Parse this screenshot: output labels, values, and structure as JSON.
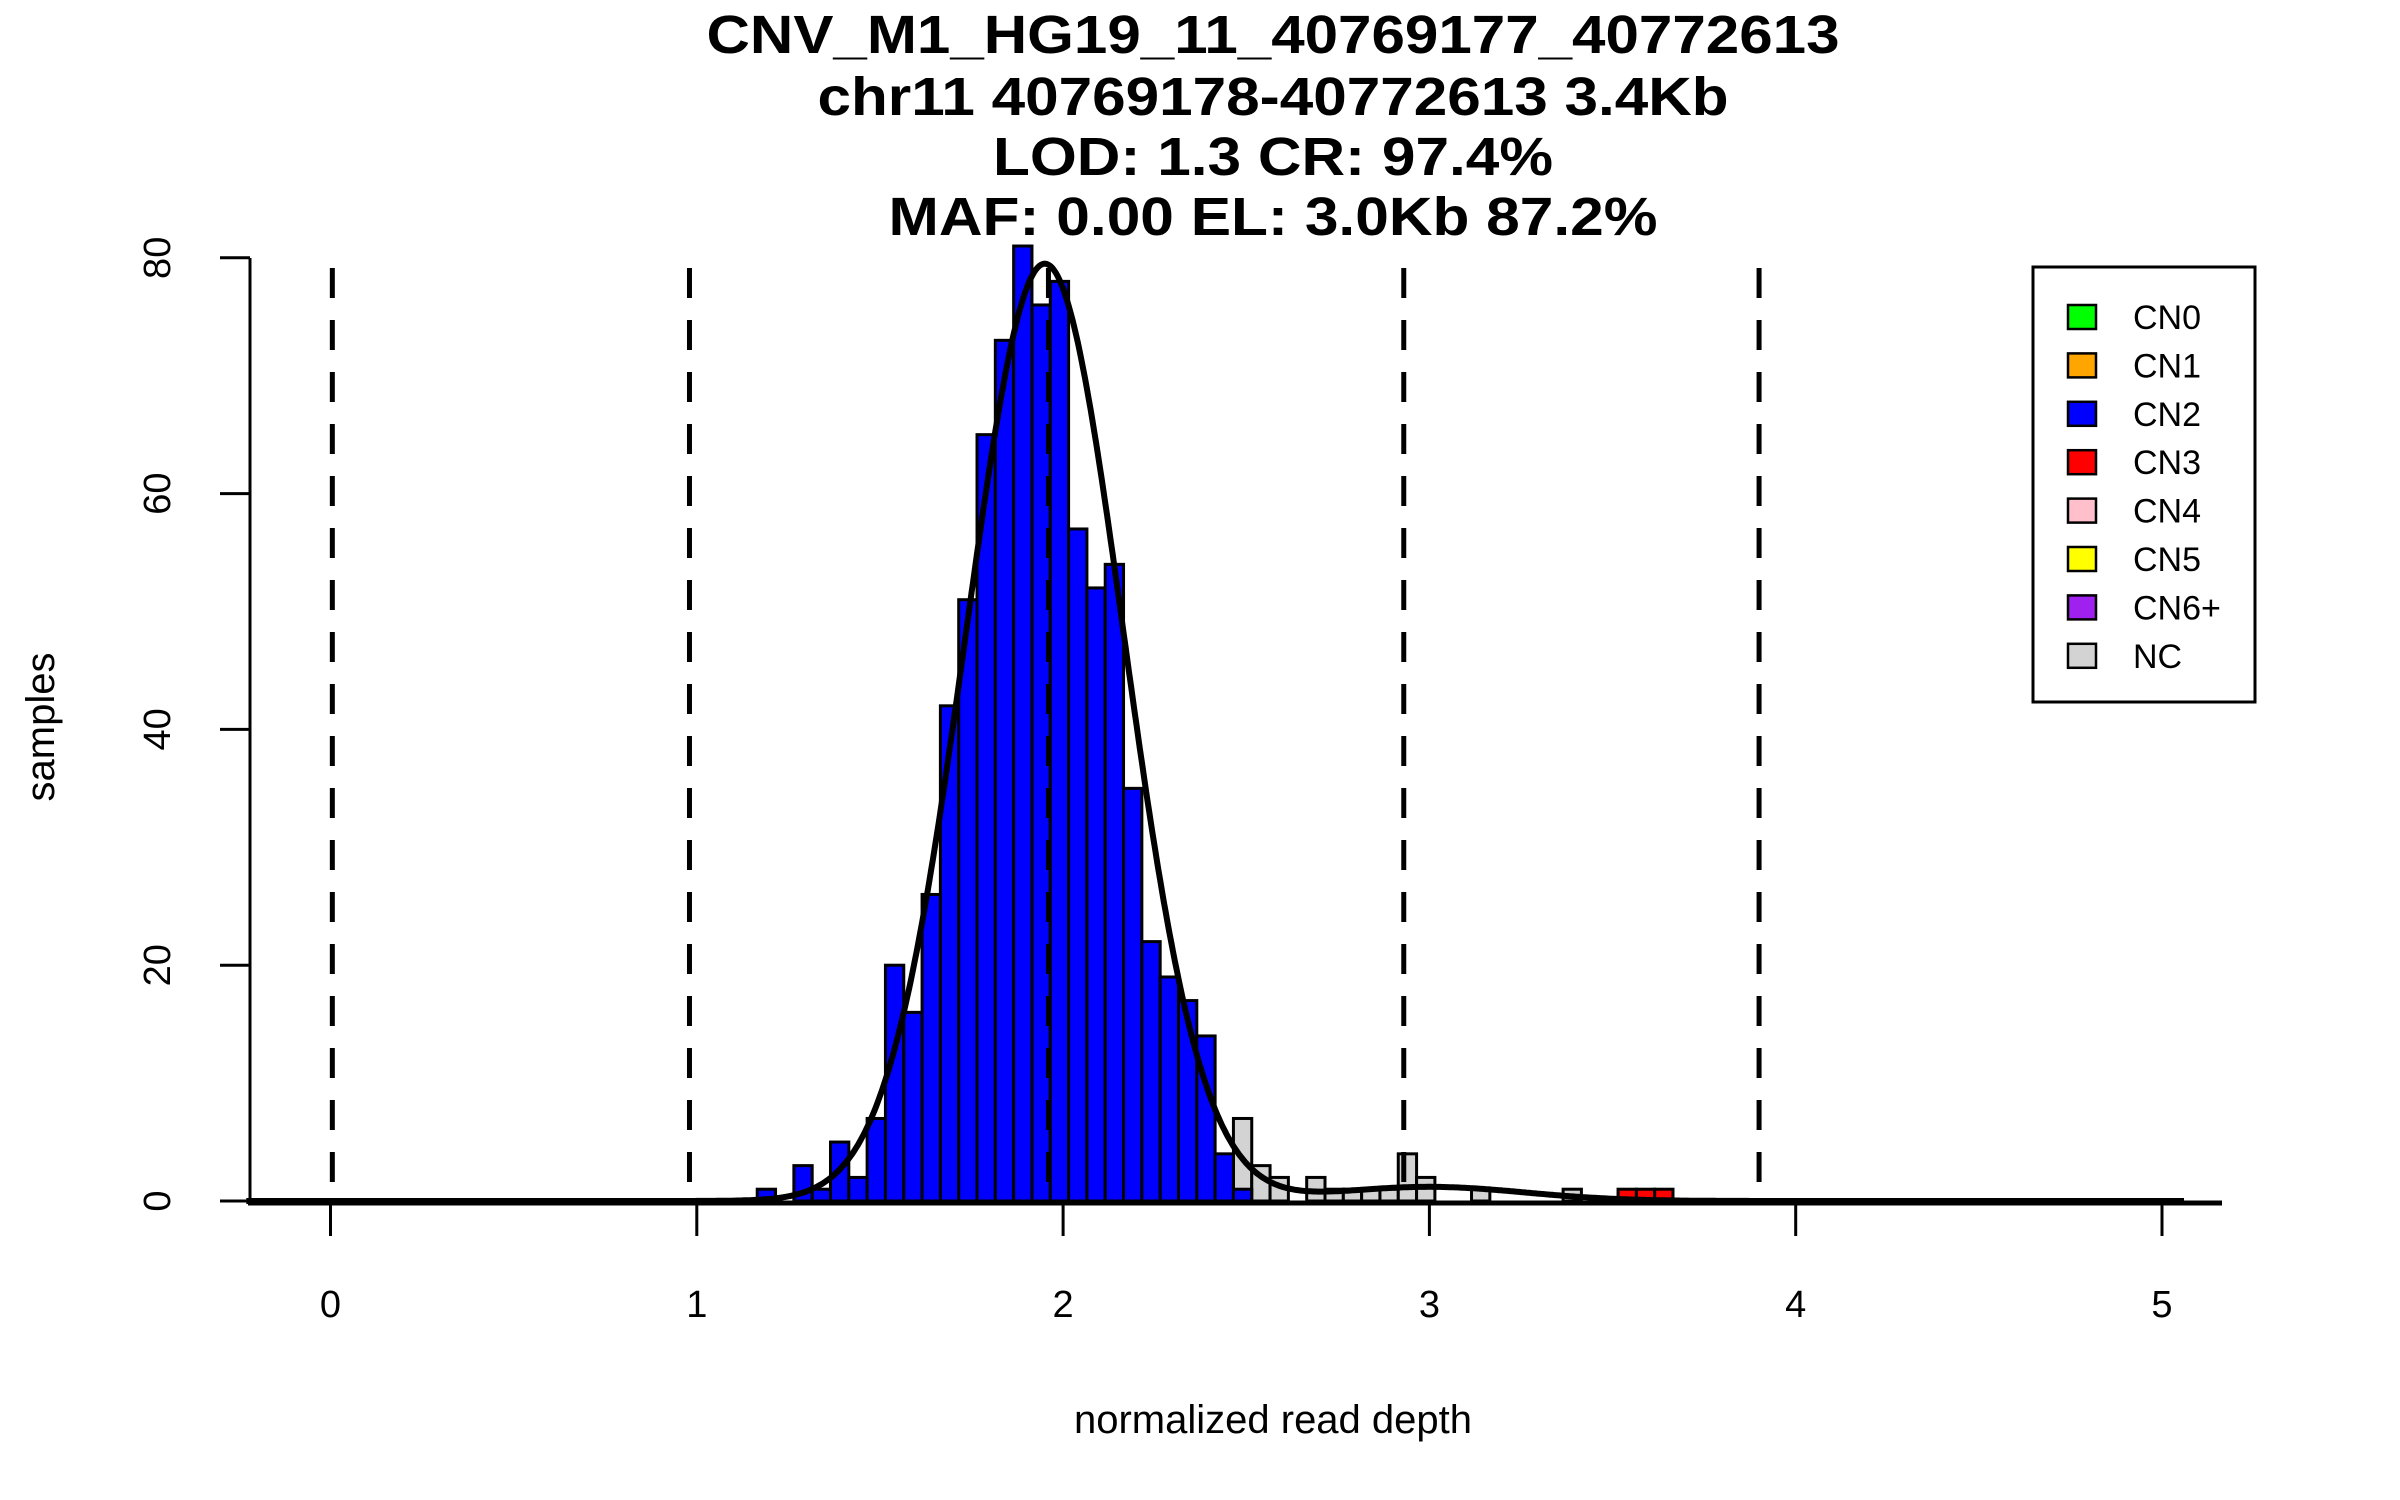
{
  "chart_data": {
    "type": "bar",
    "title_lines": [
      "CNV_M1_HG19_11_40769177_40772613",
      "chr11 40769178-40772613 3.4Kb",
      "LOD: 1.3 CR: 97.4%",
      "MAF: 0.00 EL: 3.0Kb 87.2%"
    ],
    "xlabel": "normalized read depth",
    "ylabel": "samples",
    "xlim": [
      -0.23,
      5.12
    ],
    "ylim": [
      0,
      80
    ],
    "x_ticks": [
      "0",
      "1",
      "2",
      "3",
      "4",
      "5"
    ],
    "y_ticks": [
      "0",
      "20",
      "40",
      "60",
      "80"
    ],
    "bin_start": 1.165,
    "bin_width": 0.05,
    "series": [
      {
        "name": "NC",
        "color": "#d3d3d3",
        "bins": {
          "26": 7,
          "27": 3,
          "28": 2,
          "30": 2,
          "31": 1,
          "32": 1,
          "33": 1,
          "34": 1,
          "35": 4,
          "36": 2,
          "39": 1,
          "44": 1
        }
      },
      {
        "name": "CN2",
        "color": "#0000ff",
        "values": [
          1,
          0,
          3,
          1,
          5,
          2,
          7,
          20,
          16,
          26,
          42,
          51,
          65,
          73,
          81,
          76,
          78,
          57,
          52,
          54,
          35,
          22,
          19,
          17,
          14,
          4,
          1
        ]
      },
      {
        "name": "CN3",
        "color": "#ff0000",
        "bins": {
          "47": 1,
          "48": 1,
          "49": 1
        }
      }
    ],
    "fit_curve": {
      "components": [
        {
          "mean": 1.95,
          "sd": 0.215,
          "height": 79.5
        },
        {
          "mean": 3.0,
          "sd": 0.26,
          "height": 1.2
        }
      ],
      "x_range": [
        -0.23,
        5.06
      ]
    },
    "thresholds": [
      0.005,
      0.98,
      1.96,
      2.93,
      3.9
    ],
    "legend": {
      "placement": "top-right",
      "items": [
        {
          "label": "CN0",
          "color": "#00ff00"
        },
        {
          "label": "CN1",
          "color": "#ffa500"
        },
        {
          "label": "CN2",
          "color": "#0000ff"
        },
        {
          "label": "CN3",
          "color": "#ff0000"
        },
        {
          "label": "CN4",
          "color": "#ffc0cb"
        },
        {
          "label": "CN5",
          "color": "#ffff00"
        },
        {
          "label": "CN6+",
          "color": "#a020f0"
        },
        {
          "label": "NC",
          "color": "#d3d3d3"
        }
      ]
    }
  }
}
